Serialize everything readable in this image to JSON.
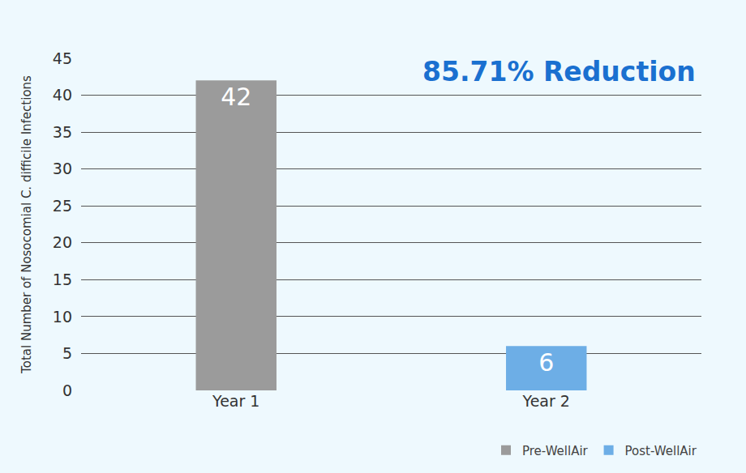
{
  "chart_data": {
    "type": "bar",
    "categories": [
      "Year 1",
      "Year 2"
    ],
    "series": [
      {
        "name": "Pre-WellAir",
        "color": "#9b9b9b",
        "values": [
          42,
          null
        ]
      },
      {
        "name": "Post-WellAir",
        "color": "#6daee6",
        "values": [
          null,
          6
        ]
      }
    ],
    "ylabel": "Total Number of Nosocomial C. difficile Infections",
    "annotations": [
      "85.71% Reduction"
    ],
    "ylim": [
      0,
      45
    ],
    "yticks": [
      0,
      5,
      10,
      15,
      20,
      25,
      30,
      35,
      40,
      45
    ],
    "grid": true,
    "data_labels": true,
    "legend": "bottom right"
  }
}
